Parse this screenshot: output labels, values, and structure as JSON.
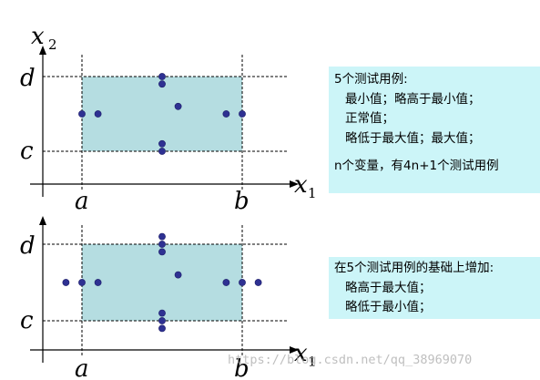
{
  "colors": {
    "region": "#b5dde1",
    "point": "#2e3192",
    "note_bg": "#ccf5f8"
  },
  "panels": [
    {
      "labels": {
        "y_axis": "x",
        "y_axis_sub": "2",
        "x_axis": "x",
        "x_axis_sub": "1",
        "y_low": "c",
        "y_high": "d",
        "x_low": "a",
        "x_high": "b"
      },
      "points": [
        {
          "x": 0.0,
          "y": 0.5
        },
        {
          "x": 0.1,
          "y": 0.5
        },
        {
          "x": 0.5,
          "y": 1.0
        },
        {
          "x": 0.5,
          "y": 0.9
        },
        {
          "x": 0.6,
          "y": 0.6
        },
        {
          "x": 0.5,
          "y": 0.1
        },
        {
          "x": 0.5,
          "y": 0.0
        },
        {
          "x": 0.9,
          "y": 0.5
        },
        {
          "x": 1.0,
          "y": 0.5
        }
      ]
    },
    {
      "labels": {
        "y_axis": "x",
        "y_axis_sub": "2",
        "x_axis": "x",
        "x_axis_sub": "1",
        "y_low": "c",
        "y_high": "d",
        "x_low": "a",
        "x_high": "b"
      },
      "points": [
        {
          "x": -0.1,
          "y": 0.5
        },
        {
          "x": 0.0,
          "y": 0.5
        },
        {
          "x": 0.1,
          "y": 0.5
        },
        {
          "x": 0.5,
          "y": 1.1
        },
        {
          "x": 0.5,
          "y": 1.0
        },
        {
          "x": 0.5,
          "y": 0.9
        },
        {
          "x": 0.6,
          "y": 0.6
        },
        {
          "x": 0.5,
          "y": 0.1
        },
        {
          "x": 0.5,
          "y": 0.0
        },
        {
          "x": 0.5,
          "y": -0.1
        },
        {
          "x": 0.9,
          "y": 0.5
        },
        {
          "x": 1.0,
          "y": 0.5
        },
        {
          "x": 1.1,
          "y": 0.5
        }
      ]
    }
  ],
  "note1": {
    "line1": "5个测试用例:",
    "line2": "最小值；略高于最小值；",
    "line3": "正常值；",
    "line4": "略低于最大值；最大值；",
    "line5": "n个变量，有4n+1个测试用例"
  },
  "note2": {
    "line1": "在5个测试用例的基础上增加:",
    "line2": "略高于最大值；",
    "line3": "略低于最小值；"
  },
  "watermark": "https://blog.csdn.net/qq_38969070"
}
